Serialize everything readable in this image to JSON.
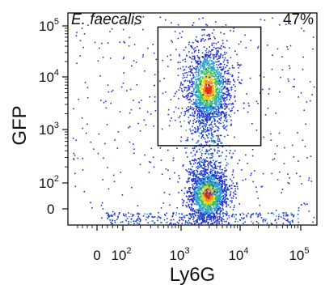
{
  "chart_data": {
    "type": "scatter",
    "title": "E. faecalis",
    "gate_percent": "47%",
    "xlabel": "Ly6G",
    "ylabel": "GFP",
    "x_scale": "biexponential",
    "y_scale": "biexponential",
    "x_ticks": [
      {
        "label": "0",
        "value": 0
      },
      {
        "label": "10",
        "exp": "2",
        "value": 100
      },
      {
        "label": "10",
        "exp": "3",
        "value": 1000
      },
      {
        "label": "10",
        "exp": "4",
        "value": 10000
      },
      {
        "label": "10",
        "exp": "5",
        "value": 100000
      }
    ],
    "y_ticks": [
      {
        "label": "0",
        "value": 0
      },
      {
        "label": "10",
        "exp": "2",
        "value": 100
      },
      {
        "label": "10",
        "exp": "3",
        "value": 1000
      },
      {
        "label": "10",
        "exp": "4",
        "value": 10000
      },
      {
        "label": "10",
        "exp": "5",
        "value": 100000
      }
    ],
    "gate": {
      "x_min": 400,
      "x_max": 22000,
      "y_min": 500,
      "y_max": 95000
    },
    "populations": [
      {
        "x_center": 2800,
        "y_center": 6000,
        "share": 0.47
      },
      {
        "x_center": 2800,
        "y_center": 40,
        "share": 0.45
      },
      {
        "x_center": 2800,
        "y_center": 500,
        "share": 0.08
      }
    ],
    "density_colors": [
      "#2233cc",
      "#2a9fd8",
      "#3cc06a",
      "#e6d21e",
      "#f08a12",
      "#e02818"
    ],
    "grid": false,
    "legend": "none"
  }
}
